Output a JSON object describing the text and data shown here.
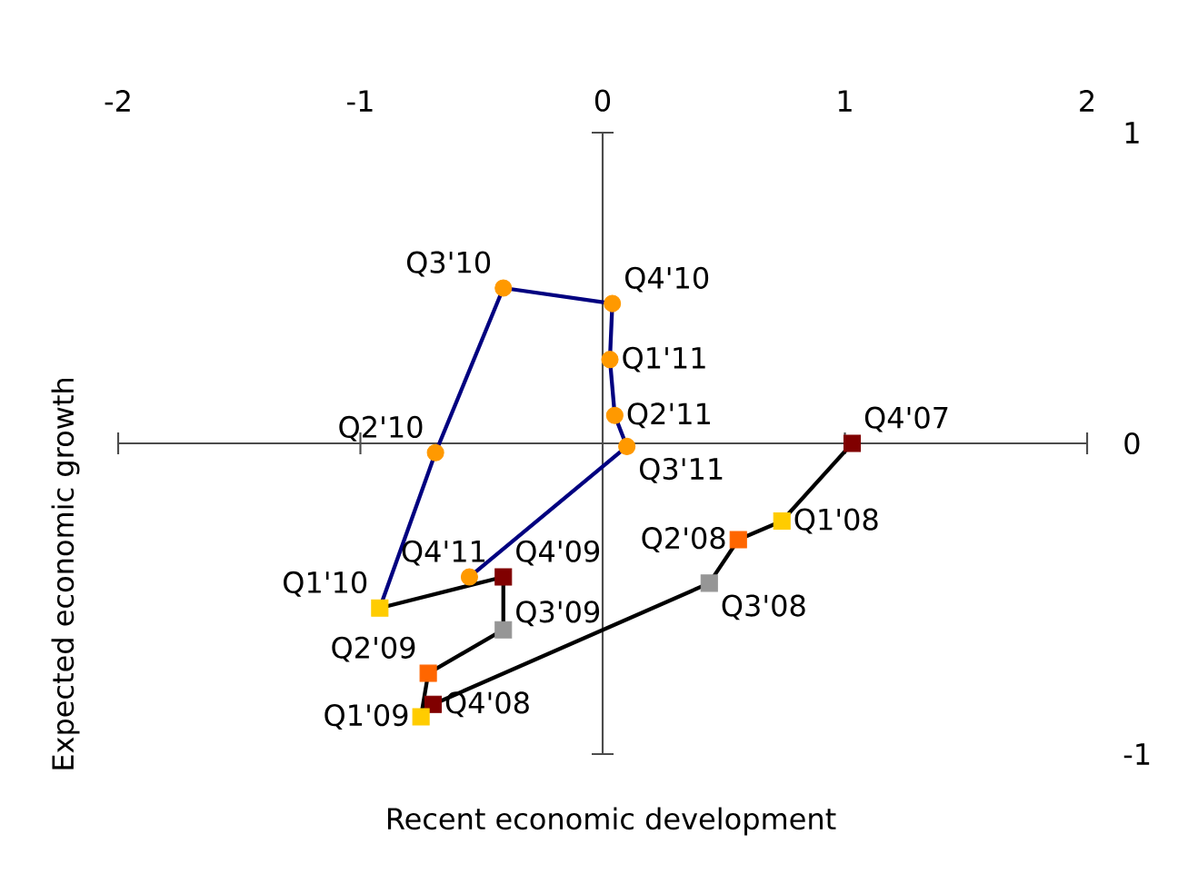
{
  "chart_data": {
    "type": "line",
    "xlabel": "Recent economic development",
    "ylabel": "Expected economic growth",
    "xlim": [
      -2,
      2
    ],
    "ylim": [
      -1,
      1
    ],
    "xticks": [
      -2,
      -1,
      0,
      1,
      2
    ],
    "yticks": [
      -1,
      0,
      1
    ],
    "line_style": "solid",
    "series": [
      {
        "color": "#000080",
        "marker": "circle",
        "x": [
          -0.92,
          -0.69,
          -0.41,
          0.04,
          0.03,
          0.05,
          0.1,
          -0.55
        ],
        "values": [
          -0.53,
          -0.03,
          0.5,
          0.45,
          0.27,
          0.09,
          -0.01,
          -0.43
        ],
        "colors": [
          null,
          "#ff9900",
          "#ff9900",
          "#ff9900",
          "#ff9900",
          "#ff9900",
          "#ff9900",
          "#ff9900"
        ]
      },
      {
        "color": "#000000",
        "marker": "square",
        "x": [
          1.03,
          0.74,
          0.56,
          0.44,
          -0.7,
          -0.75,
          -0.72,
          -0.41,
          -0.41,
          -0.92
        ],
        "values": [
          0,
          -0.25,
          -0.31,
          -0.45,
          -0.84,
          -0.88,
          -0.74,
          -0.6,
          -0.43,
          -0.53
        ],
        "colors": [
          "#800000",
          "#ffcc00",
          "#ff6600",
          "#969696",
          "#800000",
          "#ffcc00",
          "#ff6600",
          "#969696",
          "#800000",
          "#ffcc00"
        ]
      }
    ],
    "annotations": [
      {
        "text": "Q4'07",
        "x": 1.03,
        "y": 0
      },
      {
        "text": "Q1'08",
        "x": 0.74,
        "y": -0.25
      },
      {
        "text": "Q2'08",
        "x": 0.56,
        "y": -0.31
      },
      {
        "text": "Q3'08",
        "x": 0.44,
        "y": -0.45
      },
      {
        "text": "Q4'08",
        "x": -0.7,
        "y": -0.84
      },
      {
        "text": "Q1'09",
        "x": -0.75,
        "y": -0.88
      },
      {
        "text": "Q2'09",
        "x": -0.72,
        "y": -0.74
      },
      {
        "text": "Q3'09",
        "x": -0.41,
        "y": -0.6
      },
      {
        "text": "Q4'09",
        "x": -0.41,
        "y": -0.43
      },
      {
        "text": "Q1'10",
        "x": -0.92,
        "y": -0.53
      },
      {
        "text": "Q2'10",
        "x": -0.69,
        "y": -0.03
      },
      {
        "text": "Q3'10",
        "x": -0.41,
        "y": 0.5
      },
      {
        "text": "Q4'10",
        "x": 0.04,
        "y": 0.45
      },
      {
        "text": "Q1'11",
        "x": 0.03,
        "y": 0.27
      },
      {
        "text": "Q2'11",
        "x": 0.05,
        "y": 0.09
      },
      {
        "text": "Q3'11",
        "x": 0.1,
        "y": -0.01
      },
      {
        "text": "Q4'11",
        "x": -0.55,
        "y": -0.43
      }
    ]
  }
}
